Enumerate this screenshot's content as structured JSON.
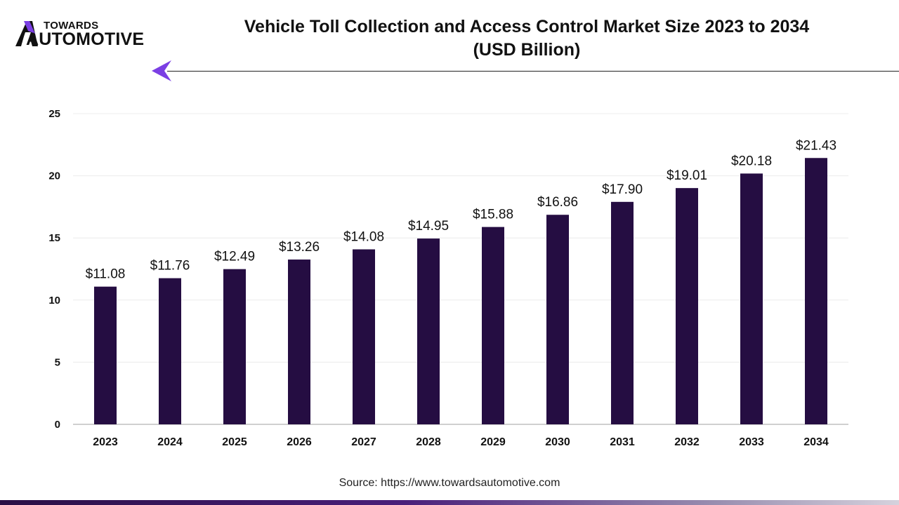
{
  "header": {
    "logo_top": "TOWARDS",
    "logo_bottom": "AUTOMOTIVE",
    "title_line1": "Vehicle Toll Collection and Access Control Market Size 2023 to 2034",
    "title_line2": "(USD Billion)",
    "brand_color": "#7b3fe4"
  },
  "chart_data": {
    "type": "bar",
    "title": "Vehicle Toll Collection and Access Control Market Size 2023 to 2034 (USD Billion)",
    "xlabel": "",
    "ylabel": "",
    "categories": [
      "2023",
      "2024",
      "2025",
      "2026",
      "2027",
      "2028",
      "2029",
      "2030",
      "2031",
      "2032",
      "2033",
      "2034"
    ],
    "values": [
      11.08,
      11.76,
      12.49,
      13.26,
      14.08,
      14.95,
      15.88,
      16.86,
      17.9,
      19.01,
      20.18,
      21.43
    ],
    "labels": [
      "$11.08",
      "$11.76",
      "$12.49",
      "$13.26",
      "$14.08",
      "$14.95",
      "$15.88",
      "$16.86",
      "$17.90",
      "$19.01",
      "$20.18",
      "$21.43"
    ],
    "ylim": [
      0,
      25
    ],
    "yticks": [
      "0",
      "5",
      "10",
      "15",
      "20",
      "25"
    ],
    "bar_color": "#250d42",
    "grid": true,
    "legend": "none"
  },
  "footer": {
    "source": "Source: https://www.towardsautomotive.com"
  }
}
